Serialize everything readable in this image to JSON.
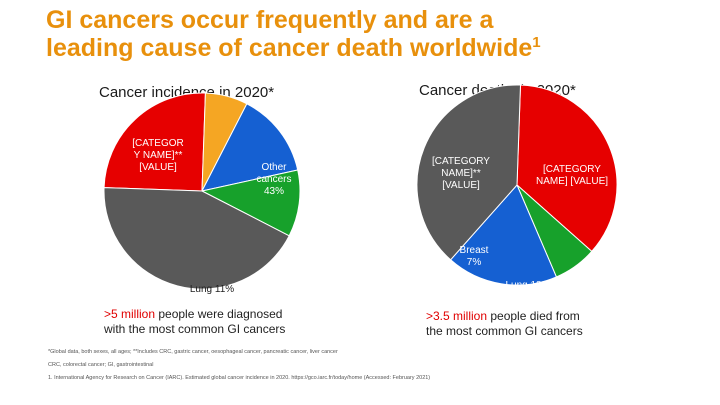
{
  "slide": {
    "title_line1": "GI cancers occur frequently and are a",
    "title_line2": "leading cause of cancer death worldwide",
    "title_sup": "1"
  },
  "chart_data": [
    {
      "type": "pie",
      "title": "Cancer incidence in 2020*",
      "slices": [
        {
          "label": "[CATEGOR Y NAME]** [VALUE]",
          "value": 25,
          "color": "#E60000"
        },
        {
          "label": "",
          "value": 7,
          "color": "#F5A623"
        },
        {
          "label": "",
          "value": 14,
          "color": "#1560D2"
        },
        {
          "label": "Lung 11%",
          "value": 11,
          "color": "#17A12B"
        },
        {
          "label": "Other cancers 43%",
          "value": 43,
          "color": "#595959"
        }
      ]
    },
    {
      "type": "pie",
      "title": "Cancer deaths in 2020*",
      "slices": [
        {
          "label": "[CATEGORY NAME]** [VALUE]",
          "value": 36,
          "color": "#E60000"
        },
        {
          "label": "Breast 7%",
          "value": 7,
          "color": "#17A12B"
        },
        {
          "label": "Lung 18%",
          "value": 18,
          "color": "#1560D2"
        },
        {
          "label": "[CATEGORY NAME] [VALUE]",
          "value": 39,
          "color": "#595959"
        }
      ]
    }
  ],
  "notes": {
    "left_highlight": ">5 million",
    "left_rest": " people were diagnosed with the most common GI cancers",
    "right_highlight": ">3.5 million",
    "right_rest": " people died from the most common GI cancers"
  },
  "footnotes": {
    "line1": "*Global data, both sexes, all ages; **Includes CRC, gastric cancer, oesophageal cancer, pancreatic cancer, liver cancer",
    "line2": "CRC, colorectal cancer; GI, gastrointestinal",
    "line3": "1. International Agency for Research on Cancer (IARC). Estimated global cancer incidence in 2020. https://gco.iarc.fr/today/home (Accessed: February 2021)"
  }
}
